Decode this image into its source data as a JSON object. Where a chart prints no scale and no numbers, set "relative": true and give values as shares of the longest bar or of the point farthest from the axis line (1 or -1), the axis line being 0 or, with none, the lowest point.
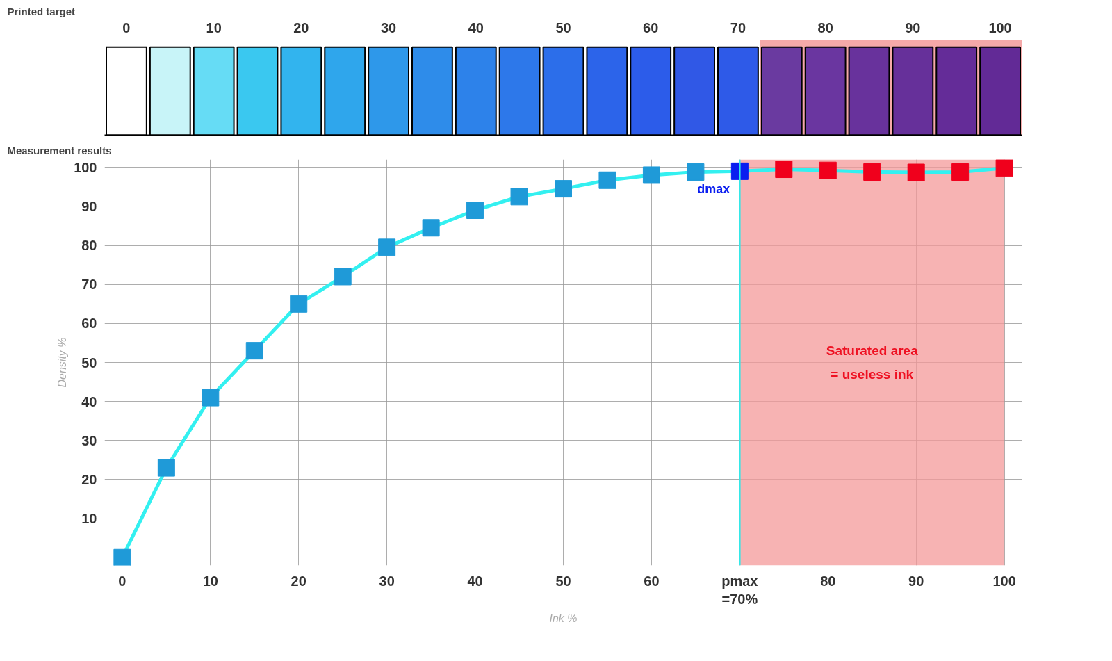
{
  "chart_data": [
    {
      "type": "bar",
      "title": "Printed target",
      "relative": true,
      "x": [
        0,
        5,
        10,
        15,
        20,
        25,
        30,
        35,
        40,
        45,
        50,
        55,
        60,
        65,
        70,
        75,
        80,
        85,
        90,
        95,
        100
      ],
      "values": [
        1,
        1,
        1,
        1,
        1,
        1,
        1,
        1,
        1,
        1,
        1,
        1,
        1,
        1,
        1,
        1,
        1,
        1,
        1,
        1,
        1
      ],
      "colors": [
        "#ffffff",
        "#c8f4f8",
        "#66dcf5",
        "#3ac8f0",
        "#32b4ee",
        "#2fa6ec",
        "#2e98ea",
        "#2e8cea",
        "#2d82ea",
        "#2d78ea",
        "#2c6eea",
        "#2c64ea",
        "#2c5cea",
        "#3058e6",
        "#2e5ae8",
        "#6a3aa0",
        "#6a36a0",
        "#68329c",
        "#66309a",
        "#642c98",
        "#622a96"
      ],
      "xlim": [
        -2.5,
        102.5
      ],
      "xticks": [
        0,
        10,
        20,
        30,
        40,
        50,
        60,
        70,
        80,
        90,
        100
      ],
      "tick_labels": "x",
      "grid": false,
      "bands": [
        {
          "axis": "x",
          "from": 72.5,
          "to": 102.5,
          "color": "#f4a0a0"
        }
      ]
    },
    {
      "type": "line",
      "title": "Measurement results",
      "xlabel": "Ink %",
      "ylabel": "Density %",
      "x": [
        0,
        5,
        10,
        15,
        20,
        25,
        30,
        35,
        40,
        45,
        50,
        55,
        60,
        65,
        70,
        75,
        80,
        85,
        90,
        95,
        100
      ],
      "series": [
        {
          "color": "#33f0f0",
          "values": [
            0,
            23,
            41,
            53,
            65,
            72,
            79.5,
            84.5,
            89,
            92.5,
            94.5,
            96.7,
            98,
            98.8,
            99,
            99.5,
            99.2,
            98.8,
            98.7,
            98.8,
            99.8
          ],
          "colors": [
            "#1f9ad8",
            "#1f9ad8",
            "#1f9ad8",
            "#1f9ad8",
            "#1f9ad8",
            "#1f9ad8",
            "#1f9ad8",
            "#1f9ad8",
            "#1f9ad8",
            "#1f9ad8",
            "#1f9ad8",
            "#1f9ad8",
            "#1f9ad8",
            "#1f9ad8",
            "#0a1ef0",
            "#f0001c",
            "#f0001c",
            "#f0001c",
            "#f0001c",
            "#f0001c",
            "#f0001c"
          ]
        }
      ],
      "marker": "square",
      "grid": true,
      "xlim": [
        -2,
        102
      ],
      "ylim": [
        -2,
        102
      ],
      "xticks": [
        0,
        10,
        20,
        30,
        40,
        50,
        60,
        {
          "value": 70,
          "label": "pmax\n=70%"
        },
        80,
        90,
        100
      ],
      "yticks": [
        10,
        20,
        30,
        40,
        50,
        60,
        70,
        80,
        90,
        100
      ],
      "ref_lines": [
        {
          "axis": "x",
          "value": 70,
          "color": "#33e8e8"
        }
      ],
      "bands": [
        {
          "axis": "x",
          "from": 70,
          "to": 100,
          "label": "Saturated area\n= useless ink",
          "color": "#f49a9a"
        }
      ],
      "annotations": [
        {
          "text": "dmax",
          "x": 70,
          "y": 99
        }
      ]
    }
  ]
}
